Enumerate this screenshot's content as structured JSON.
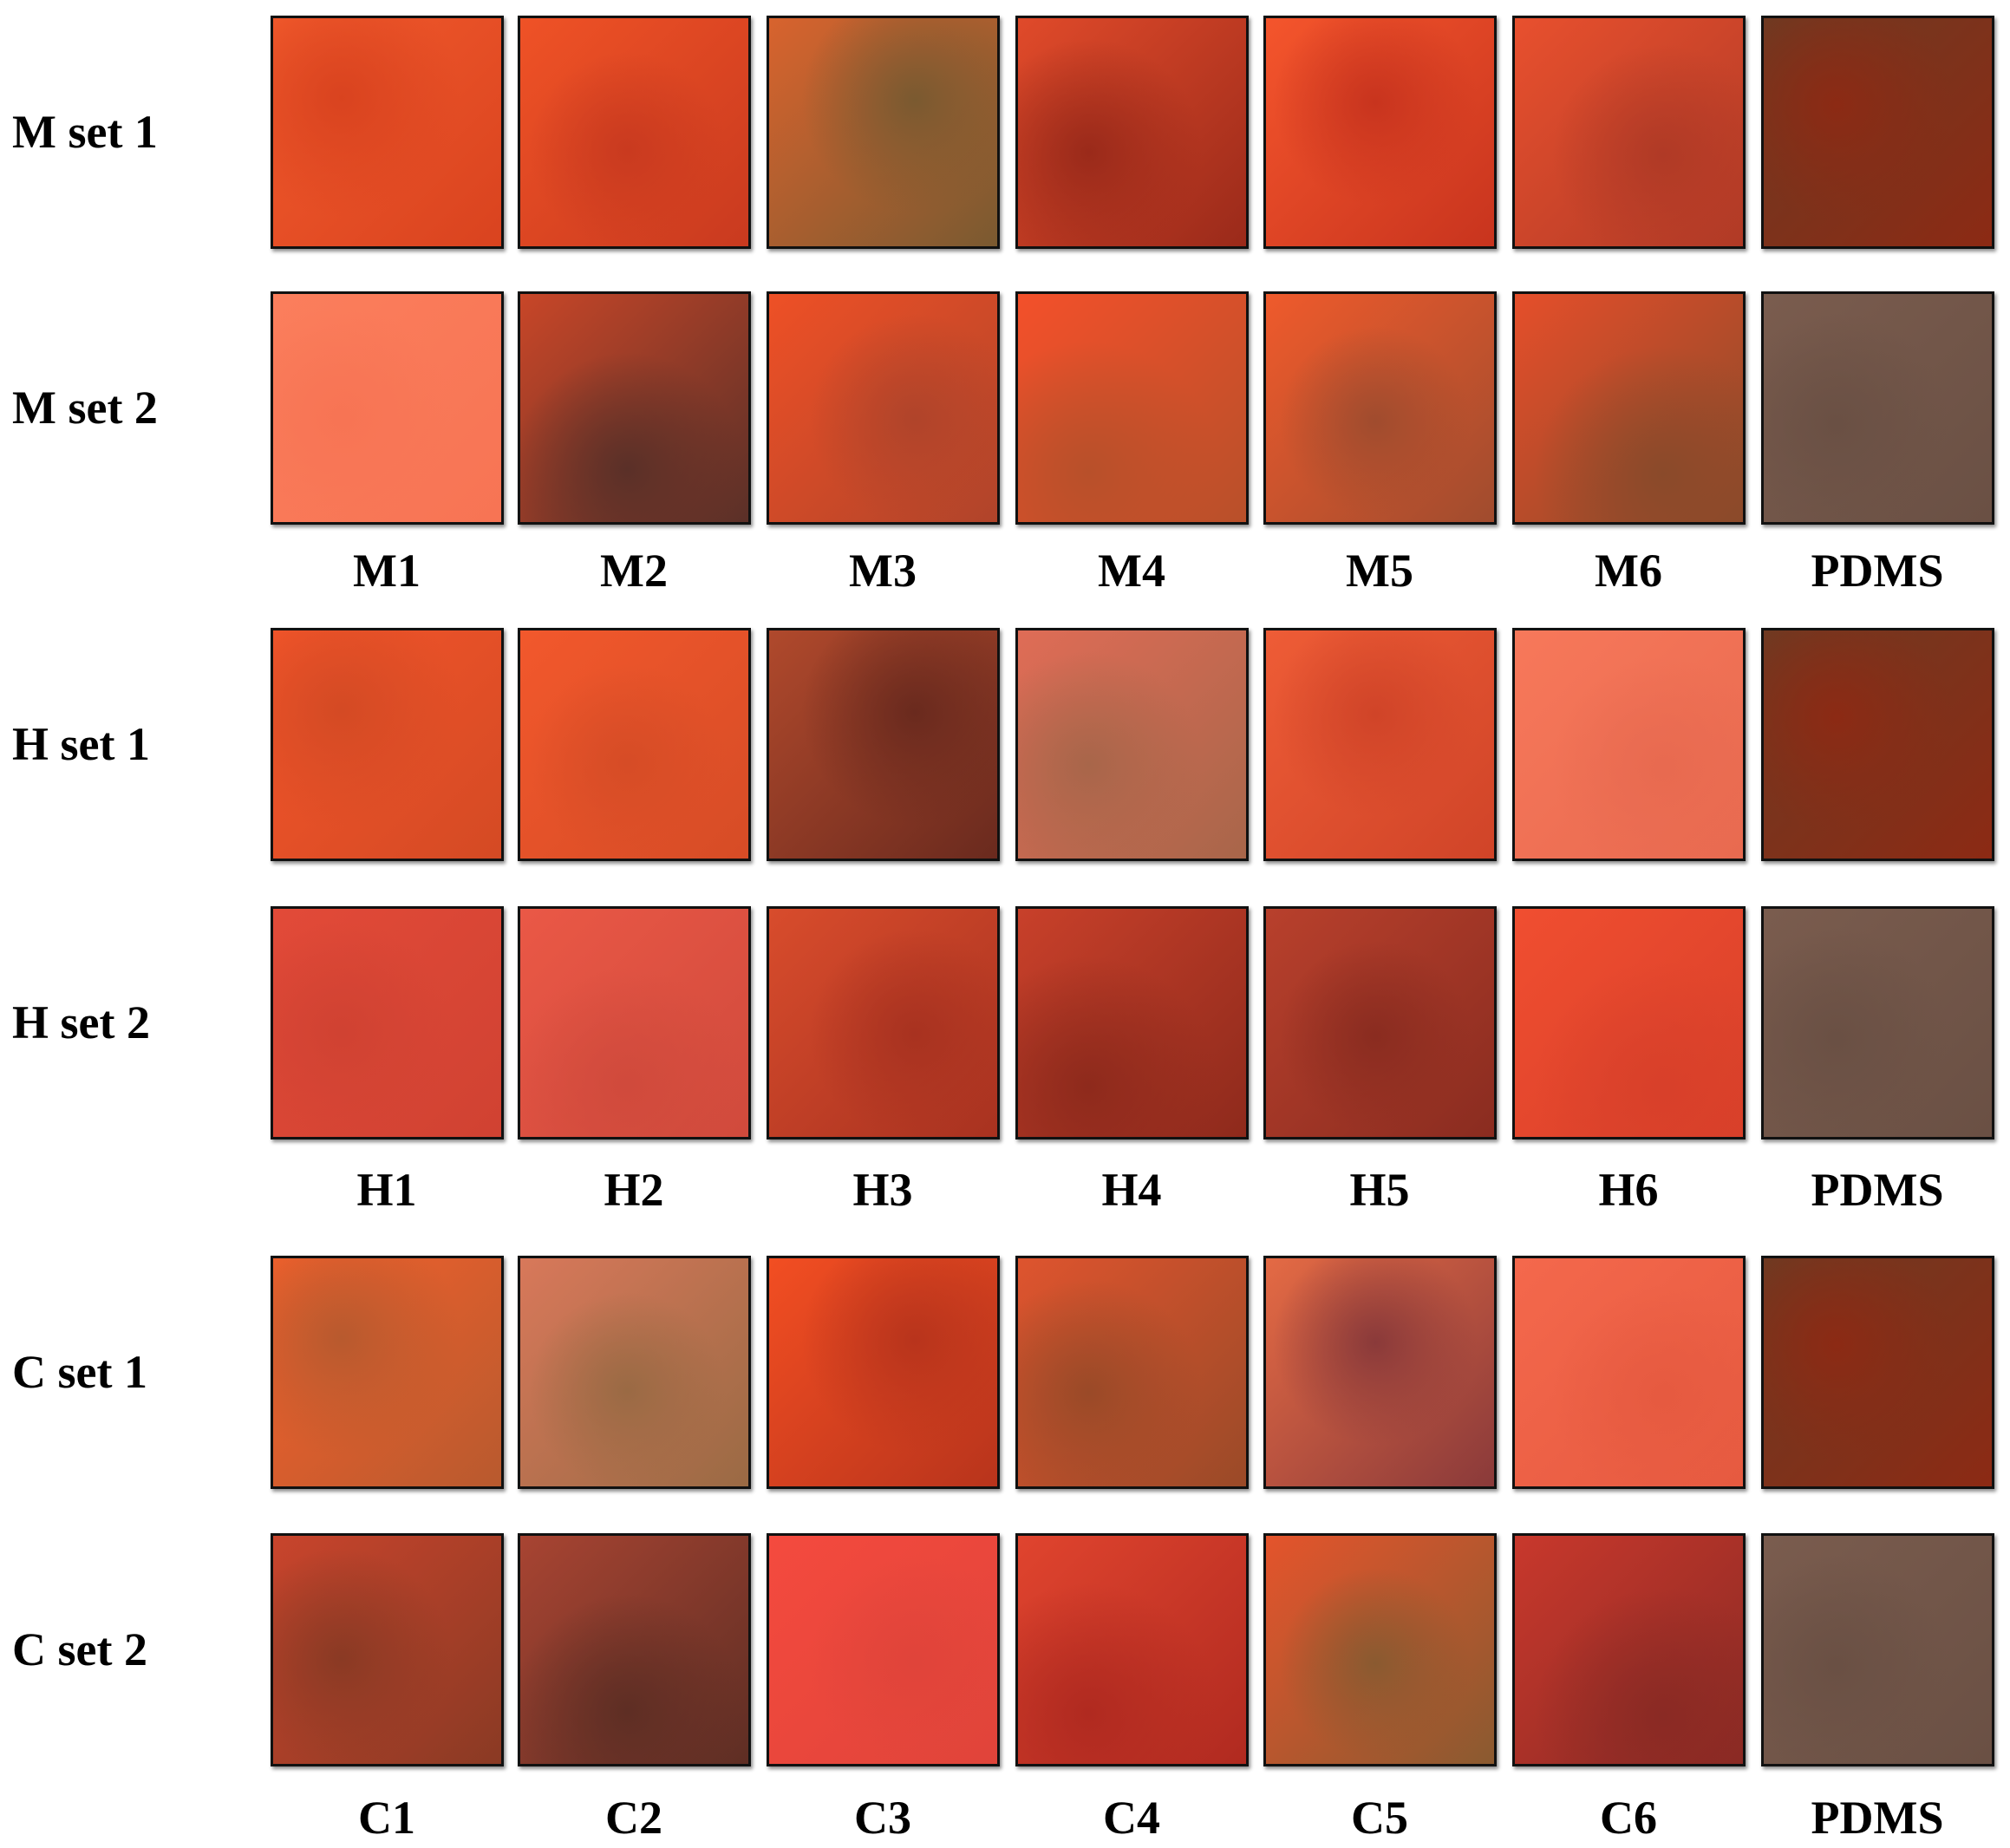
{
  "groups": [
    {
      "rows": [
        "M set 1",
        "M set 2"
      ],
      "columns": [
        "M1",
        "M2",
        "M3",
        "M4",
        "M5",
        "M6",
        "PDMS"
      ]
    },
    {
      "rows": [
        "H set 1",
        "H set 2"
      ],
      "columns": [
        "H1",
        "H2",
        "H3",
        "H4",
        "H5",
        "H6",
        "PDMS"
      ]
    },
    {
      "rows": [
        "C set 1",
        "C set 2"
      ],
      "columns": [
        "C1",
        "C2",
        "C3",
        "C4",
        "C5",
        "C6",
        "PDMS"
      ]
    }
  ]
}
